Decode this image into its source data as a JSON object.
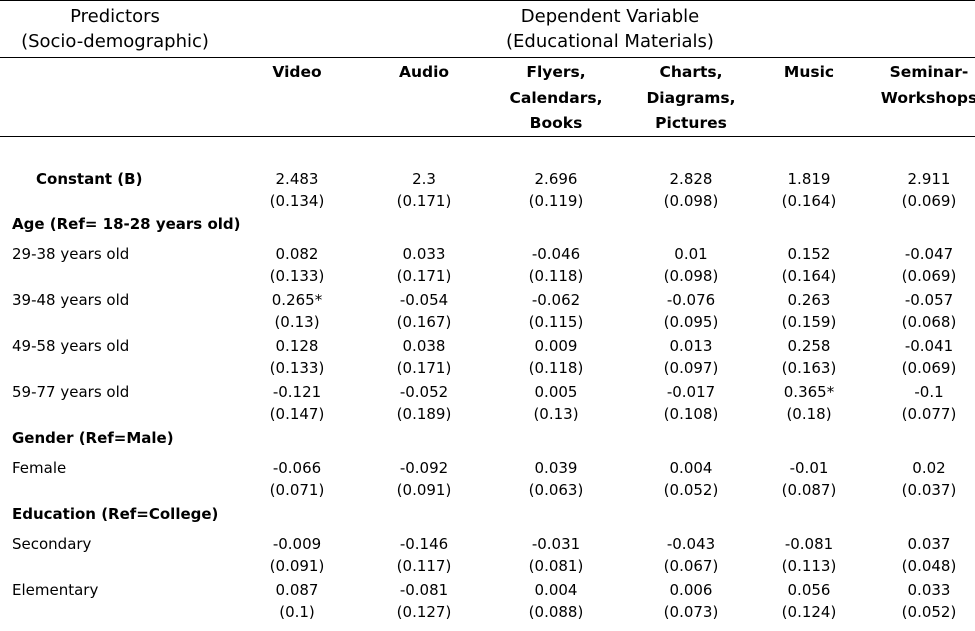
{
  "header": {
    "predictors_line1": "Predictors",
    "predictors_line2": "(Socio-demographic)",
    "dependent_line1": "Dependent Variable",
    "dependent_line2": "(Educational Materials)"
  },
  "columns": [
    {
      "lines": [
        "Video"
      ]
    },
    {
      "lines": [
        "Audio"
      ]
    },
    {
      "lines": [
        "Flyers,",
        "Calendars,",
        "Books"
      ]
    },
    {
      "lines": [
        "Charts,",
        "Diagrams,",
        "Pictures"
      ]
    },
    {
      "lines": [
        "Music"
      ]
    },
    {
      "lines": [
        "Seminar-",
        "Workshops"
      ]
    }
  ],
  "rows": [
    {
      "label": "Constant (B)",
      "bold": true,
      "indent": true,
      "coef": [
        "2.483",
        "2.3",
        "2.696",
        "2.828",
        "1.819",
        "2.911"
      ],
      "se": [
        "(0.134)",
        "(0.171)",
        "(0.119)",
        "(0.098)",
        "(0.164)",
        "(0.069)"
      ]
    },
    {
      "label": "Age (Ref= 18-28 years old)",
      "bold": true,
      "section": true
    },
    {
      "label": "29-38 years old",
      "coef": [
        "0.082",
        "0.033",
        "-0.046",
        "0.01",
        "0.152",
        "-0.047"
      ],
      "se": [
        "(0.133)",
        "(0.171)",
        "(0.118)",
        "(0.098)",
        "(0.164)",
        "(0.069)"
      ]
    },
    {
      "label": "39-48 years old",
      "coef": [
        "0.265*",
        "-0.054",
        "-0.062",
        "-0.076",
        "0.263",
        "-0.057"
      ],
      "se": [
        "(0.13)",
        "(0.167)",
        "(0.115)",
        "(0.095)",
        "(0.159)",
        "(0.068)"
      ]
    },
    {
      "label": "49-58 years old",
      "coef": [
        "0.128",
        "0.038",
        "0.009",
        "0.013",
        "0.258",
        "-0.041"
      ],
      "se": [
        "(0.133)",
        "(0.171)",
        "(0.118)",
        "(0.097)",
        "(0.163)",
        "(0.069)"
      ]
    },
    {
      "label": "59-77 years old",
      "coef": [
        "-0.121",
        "-0.052",
        "0.005",
        "-0.017",
        "0.365*",
        "-0.1"
      ],
      "se": [
        "(0.147)",
        "(0.189)",
        "(0.13)",
        "(0.108)",
        "(0.18)",
        "(0.077)"
      ]
    },
    {
      "label": "Gender (Ref=Male)",
      "bold": true,
      "section": true
    },
    {
      "label": "Female",
      "coef": [
        "-0.066",
        "-0.092",
        "0.039",
        "0.004",
        "-0.01",
        "0.02"
      ],
      "se": [
        "(0.071)",
        "(0.091)",
        "(0.063)",
        "(0.052)",
        "(0.087)",
        "(0.037)"
      ]
    },
    {
      "label": "Education (Ref=College)",
      "bold": true,
      "section": true
    },
    {
      "label": "Secondary",
      "coef": [
        "-0.009",
        "-0.146",
        "-0.031",
        "-0.043",
        "-0.081",
        "0.037"
      ],
      "se": [
        "(0.091)",
        "(0.117)",
        "(0.081)",
        "(0.067)",
        "(0.113)",
        "(0.048)"
      ]
    },
    {
      "label": "Elementary",
      "coef": [
        "0.087",
        "-0.081",
        "0.004",
        "0.006",
        "0.056",
        "0.033"
      ],
      "se": [
        "(0.1)",
        "(0.127)",
        "(0.088)",
        "(0.073)",
        "(0.124)",
        "(0.052)"
      ]
    }
  ]
}
